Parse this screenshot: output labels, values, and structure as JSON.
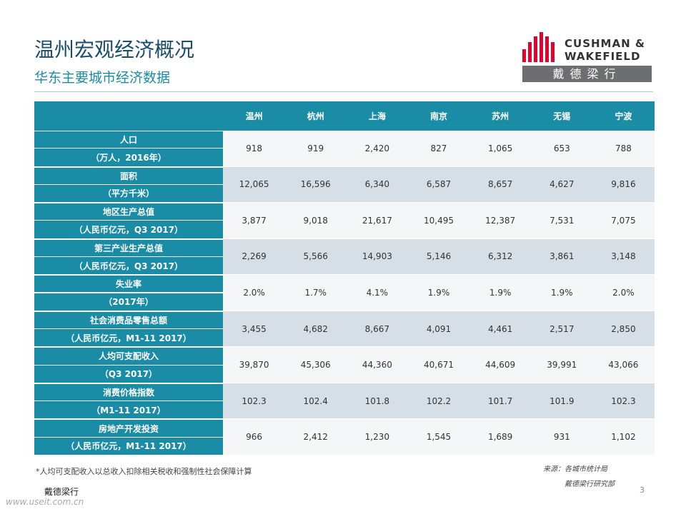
{
  "header": {
    "title": "温州宏观经济概况",
    "subtitle": "华东主要城市经济数据"
  },
  "logo": {
    "line1": "CUSHMAN &",
    "line2": "WAKEFIELD",
    "chinese": "戴德梁行"
  },
  "table": {
    "columns": [
      "温州",
      "杭州",
      "上海",
      "南京",
      "苏州",
      "无锡",
      "宁波"
    ],
    "rows": [
      {
        "label": "人口",
        "unit": "（万人，2016年）",
        "values": [
          "918",
          "919",
          "2,420",
          "827",
          "1,065",
          "653",
          "788"
        ]
      },
      {
        "label": "面积",
        "unit": "（平方千米）",
        "values": [
          "12,065",
          "16,596",
          "6,340",
          "6,587",
          "8,657",
          "4,627",
          "9,816"
        ]
      },
      {
        "label": "地区生产总值",
        "unit": "（人民币亿元，Q3 2017）",
        "values": [
          "3,877",
          "9,018",
          "21,617",
          "10,495",
          "12,387",
          "7,531",
          "7,075"
        ]
      },
      {
        "label": "第三产业生产总值",
        "unit": "（人民币亿元，Q3 2017）",
        "values": [
          "2,269",
          "5,566",
          "14,903",
          "5,146",
          "6,312",
          "3,861",
          "3,148"
        ]
      },
      {
        "label": "失业率",
        "unit": "（2017年）",
        "values": [
          "2.0%",
          "1.7%",
          "4.1%",
          "1.9%",
          "1.9%",
          "1.9%",
          "2.0%"
        ]
      },
      {
        "label": "社会消费品零售总额",
        "unit": "（人民币亿元，M1-11 2017）",
        "values": [
          "3,455",
          "4,682",
          "8,667",
          "4,091",
          "4,461",
          "2,517",
          "2,850"
        ]
      },
      {
        "label": "人均可支配收入",
        "unit": "（Q3 2017）",
        "values": [
          "39,870",
          "45,306",
          "44,360",
          "40,671",
          "44,609",
          "39,991",
          "43,066"
        ]
      },
      {
        "label": "消费价格指数",
        "unit": "（M1-11 2017）",
        "values": [
          "102.3",
          "102.4",
          "101.8",
          "102.2",
          "101.7",
          "101.9",
          "102.3"
        ]
      },
      {
        "label": "房地产开发投资",
        "unit": "（人民币亿元，M1-11 2017）",
        "values": [
          "966",
          "2,412",
          "1,230",
          "1,545",
          "1,689",
          "931",
          "1,102"
        ]
      }
    ]
  },
  "footnote": "*人均可支配收入以总收入扣除相关税收和强制性社会保障计算",
  "source": {
    "line1": "来源：各城市统计局",
    "line2": "戴德梁行研究部"
  },
  "footer": {
    "company": "戴德梁行",
    "page": "3",
    "watermark": "www.useit.com.cn"
  }
}
